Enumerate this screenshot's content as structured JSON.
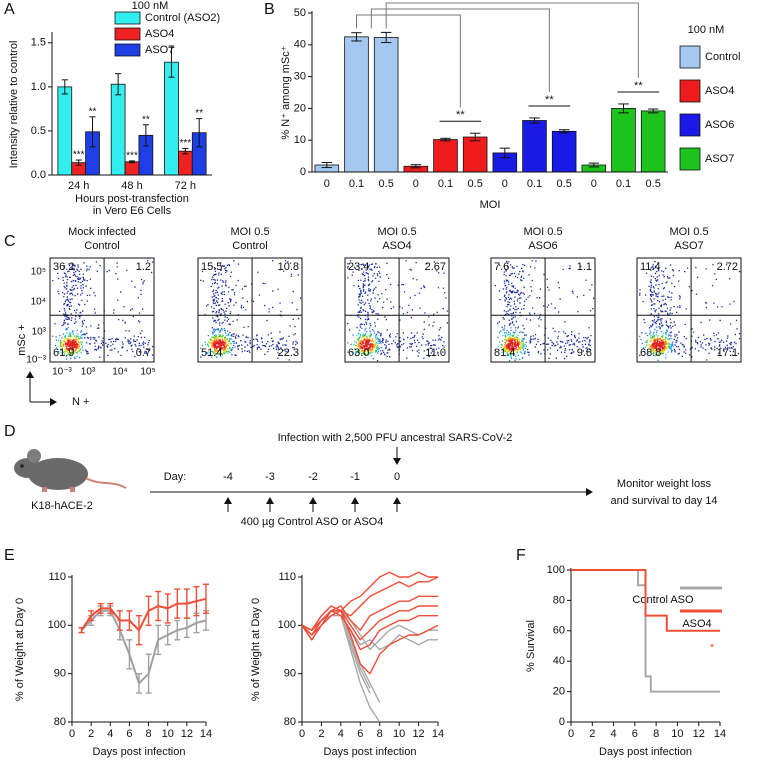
{
  "panel_labels": [
    "A",
    "B",
    "C",
    "D",
    "E",
    "F"
  ],
  "chart_data": [
    {
      "type": "bar",
      "legend_title": "100 nM",
      "ylabel": "Intensity relative to control",
      "xlabel": [
        "Hours post-transfection",
        "in Vero E6 Cells"
      ],
      "categories": [
        "24 h",
        "48 h",
        "72 h"
      ],
      "series": [
        {
          "name": "Control (ASO2)",
          "color": "#33eeee",
          "values": [
            1.0,
            1.03,
            1.28
          ],
          "errors": [
            0.08,
            0.12,
            0.17
          ]
        },
        {
          "name": "ASO4",
          "color": "#ee2222",
          "values": [
            0.14,
            0.15,
            0.27
          ],
          "errors": [
            0.03,
            0.01,
            0.03
          ],
          "annotations": [
            "***",
            "***",
            "***"
          ]
        },
        {
          "name": "ASO7",
          "color": "#1e3ee6",
          "values": [
            0.49,
            0.45,
            0.48
          ],
          "errors": [
            0.17,
            0.12,
            0.16
          ],
          "annotations": [
            "**",
            "**",
            "**"
          ]
        }
      ],
      "ylim": [
        0,
        1.6
      ],
      "yticks": [
        {
          "value": 0,
          "label": "0.0"
        },
        {
          "value": 0.5,
          "label": "0.5"
        },
        {
          "value": 1,
          "label": "1.0"
        },
        {
          "value": 1.5,
          "label": "1.5"
        }
      ],
      "grid": false
    },
    {
      "type": "bar",
      "legend_title": "100 nM",
      "ylabel": "% N⁺ among mSc⁺",
      "xlabel": "MOI",
      "categories": [
        "0",
        "0.1",
        "0.5"
      ],
      "series": [
        {
          "name": "Control",
          "color": "#a5c8f0",
          "values": [
            2.2,
            42.5,
            42.3
          ],
          "errors": [
            0.8,
            1.3,
            1.6
          ]
        },
        {
          "name": "ASO4",
          "color": "#ee1c1c",
          "values": [
            1.8,
            10.2,
            11.0
          ],
          "errors": [
            0.5,
            0.4,
            1.2
          ]
        },
        {
          "name": "ASO6",
          "color": "#1a1ae6",
          "values": [
            6.0,
            16.2,
            12.8
          ],
          "errors": [
            1.5,
            0.8,
            0.5
          ]
        },
        {
          "name": "ASO7",
          "color": "#1ec41e",
          "values": [
            2.2,
            20.0,
            19.2
          ],
          "errors": [
            0.6,
            1.4,
            0.6
          ]
        }
      ],
      "significance": [
        "**",
        "**",
        "**"
      ],
      "ylim": [
        0,
        50
      ],
      "yticks": [
        0,
        10,
        20,
        30,
        40,
        50
      ],
      "grid": false
    },
    {
      "type": "line",
      "ylabel": "% of Weight at Day 0",
      "xlabel": "Days post infection",
      "x": [
        1,
        2,
        3,
        4,
        5,
        6,
        7,
        8,
        9,
        10,
        11,
        12,
        13,
        14
      ],
      "series": [
        {
          "color": "#a0a0a0",
          "values": [
            99,
            101,
            103,
            103,
            99,
            94,
            88,
            90,
            97,
            98,
            99,
            99.5,
            100.5,
            101
          ],
          "errors": [
            0.5,
            1,
            1,
            1,
            2,
            3,
            2,
            4,
            3,
            2,
            2,
            2,
            2,
            2
          ]
        },
        {
          "color": "#f04e37",
          "values": [
            99,
            102,
            103.5,
            103.5,
            101,
            101,
            99,
            103,
            104,
            103.5,
            104.5,
            104.5,
            105,
            105.5
          ],
          "errors": [
            0.5,
            1,
            1,
            1,
            2,
            2,
            3,
            3,
            3,
            3,
            3,
            3,
            3,
            3
          ]
        }
      ],
      "xlim": [
        0,
        14
      ],
      "xticks": [
        0,
        2,
        4,
        6,
        8,
        10,
        12,
        14
      ],
      "ylim": [
        80,
        110
      ],
      "yticks": [
        80,
        90,
        100,
        110
      ],
      "grid": false
    },
    {
      "type": "line",
      "ylabel": "% of Weight at Day 0",
      "xlabel": "Days post infection",
      "x": [
        0,
        1,
        2,
        3,
        4,
        5,
        6,
        7,
        8,
        9,
        10,
        11,
        12,
        13,
        14
      ],
      "series": [
        {
          "color": "#a8a8a8",
          "values": [
            100,
            98,
            101,
            103,
            102,
            96,
            90,
            86,
            null,
            null,
            null,
            null,
            null,
            null,
            null
          ]
        },
        {
          "color": "#a8a8a8",
          "values": [
            100,
            99,
            102,
            104,
            103,
            98,
            92,
            88,
            84,
            null,
            null,
            null,
            null,
            null,
            null
          ]
        },
        {
          "color": "#a8a8a8",
          "values": [
            100,
            97,
            100,
            103,
            102,
            95,
            88,
            83,
            80,
            null,
            null,
            null,
            null,
            null,
            null
          ]
        },
        {
          "color": "#a8a8a8",
          "values": [
            100,
            99,
            101,
            103,
            103,
            101,
            98,
            95,
            97,
            99,
            100,
            99,
            98,
            99,
            99
          ]
        },
        {
          "color": "#a8a8a8",
          "values": [
            100,
            98,
            100,
            102,
            102,
            99,
            96,
            97,
            95,
            96,
            98,
            97,
            96,
            97,
            97
          ]
        },
        {
          "color": "#a8a8a8",
          "values": [
            100,
            99,
            101,
            102,
            103,
            97,
            91,
            87,
            null,
            null,
            null,
            null,
            null,
            null,
            null
          ]
        },
        {
          "color": "#f04e37",
          "values": [
            100,
            99,
            102,
            104,
            103,
            105,
            106,
            108,
            110,
            111,
            110,
            110,
            111,
            110,
            110
          ]
        },
        {
          "color": "#f04e37",
          "values": [
            100,
            98,
            101,
            103,
            103,
            102,
            104,
            106,
            107,
            108,
            109,
            108,
            109,
            109,
            110
          ]
        },
        {
          "color": "#f04e37",
          "values": [
            100,
            99,
            101,
            103,
            104,
            101,
            99,
            102,
            103,
            104,
            105,
            105,
            106,
            106,
            106
          ]
        },
        {
          "color": "#f04e37",
          "values": [
            100,
            97,
            100,
            102,
            103,
            100,
            97,
            99,
            101,
            102,
            103,
            103,
            104,
            104,
            104
          ]
        },
        {
          "color": "#f04e37",
          "values": [
            100,
            98,
            100,
            103,
            102,
            99,
            95,
            96,
            99,
            100,
            101,
            101,
            102,
            102,
            102
          ]
        },
        {
          "color": "#f04e37",
          "values": [
            100,
            99,
            101,
            103,
            103,
            98,
            92,
            90,
            94,
            96,
            97,
            98,
            98,
            99,
            100
          ]
        }
      ],
      "xlim": [
        0,
        14
      ],
      "xticks": [
        0,
        2,
        4,
        6,
        8,
        10,
        12,
        14
      ],
      "ylim": [
        80,
        110
      ],
      "yticks": [
        80,
        90,
        100,
        110
      ],
      "grid": false
    },
    {
      "type": "step",
      "ylabel": "% Survival",
      "xlabel": "Days post infection",
      "series": [
        {
          "name": "Control ASO",
          "color": "#a8a8a8",
          "x": [
            0,
            6.3,
            7,
            7.5,
            14
          ],
          "values": [
            100,
            90,
            30,
            20,
            20
          ]
        },
        {
          "name": "ASO4",
          "color": "#f04e37",
          "x": [
            0,
            7,
            9,
            14
          ],
          "values": [
            100,
            70,
            60,
            60
          ],
          "annotation": "*"
        }
      ],
      "xlim": [
        0,
        14
      ],
      "xticks": [
        0,
        2,
        4,
        6,
        8,
        10,
        12,
        14
      ],
      "ylim": [
        0,
        100
      ],
      "yticks": [
        0,
        20,
        40,
        60,
        80,
        100
      ],
      "grid": false
    }
  ],
  "flow_cytometry": {
    "y_axis_label": "mSc +",
    "x_axis_label": "N +",
    "yticks": [
      "10⁵",
      "10⁴",
      "10³",
      "10⁻³"
    ],
    "xticks": [
      "10⁻³",
      "10³",
      "10⁴",
      "10⁵"
    ],
    "panels": [
      {
        "title": [
          "Mock infected",
          "Control"
        ],
        "quadrants": [
          "36.2",
          "1.2",
          "61.9",
          "0.7"
        ]
      },
      {
        "title": [
          "MOI 0.5",
          "Control"
        ],
        "quadrants": [
          "15.5",
          "10.8",
          "51.4",
          "22.3"
        ]
      },
      {
        "title": [
          "MOI 0.5",
          "ASO4"
        ],
        "quadrants": [
          "23.4",
          "2.67",
          "63.0",
          "11.0"
        ]
      },
      {
        "title": [
          "MOI 0.5",
          "ASO6"
        ],
        "quadrants": [
          "7.6",
          "1.1",
          "81.4",
          "9.8"
        ]
      },
      {
        "title": [
          "MOI 0.5",
          "ASO7"
        ],
        "quadrants": [
          "11.4",
          "2.72",
          "68.8",
          "17.1"
        ]
      }
    ]
  },
  "timeline": {
    "model": "K18-hACE-2",
    "day_label": "Day:",
    "days": [
      "-4",
      "-3",
      "-2",
      "-1",
      "0"
    ],
    "infection": "Infection with 2,500 PFU ancestral SARS-CoV-2",
    "treatment": "400 µg Control ASO or ASO4",
    "outcome": [
      "Monitor weight loss",
      "and survival to day 14"
    ]
  }
}
